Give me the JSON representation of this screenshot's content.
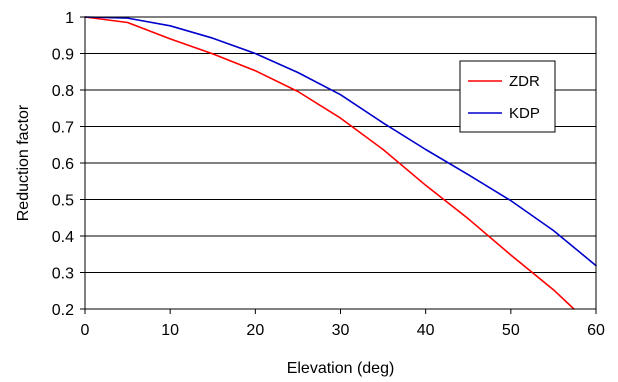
{
  "chart_data": {
    "type": "line",
    "title": "",
    "xlabel": "Elevation (deg)",
    "ylabel": "Reduction factor",
    "xlim": [
      0,
      60
    ],
    "ylim": [
      0.2,
      1
    ],
    "xticks": [
      0,
      10,
      20,
      30,
      40,
      50,
      60
    ],
    "yticks": [
      0.2,
      0.3,
      0.4,
      0.5,
      0.6,
      0.7,
      0.8,
      0.9,
      1
    ],
    "ytick_labels": [
      "0.2",
      "0.3",
      "0.4",
      "0.5",
      "0.6",
      "0.7",
      "0.8",
      "0.9",
      "1"
    ],
    "grid": "horizontal",
    "legend_position": "top-right",
    "series": [
      {
        "name": "ZDR",
        "color": "#ff0000",
        "x": [
          0,
          5,
          10,
          15,
          20,
          25,
          30,
          35,
          40,
          45,
          50,
          55,
          57.4
        ],
        "y": [
          1.0,
          0.985,
          0.94,
          0.899,
          0.853,
          0.796,
          0.723,
          0.637,
          0.539,
          0.447,
          0.348,
          0.253,
          0.2
        ]
      },
      {
        "name": "KDP",
        "color": "#0000cc",
        "x": [
          0,
          5,
          10,
          15,
          20,
          25,
          30,
          35,
          40,
          45,
          50,
          55,
          60
        ],
        "y": [
          1.0,
          0.997,
          0.976,
          0.942,
          0.9,
          0.848,
          0.787,
          0.71,
          0.637,
          0.568,
          0.497,
          0.415,
          0.319
        ]
      }
    ]
  }
}
